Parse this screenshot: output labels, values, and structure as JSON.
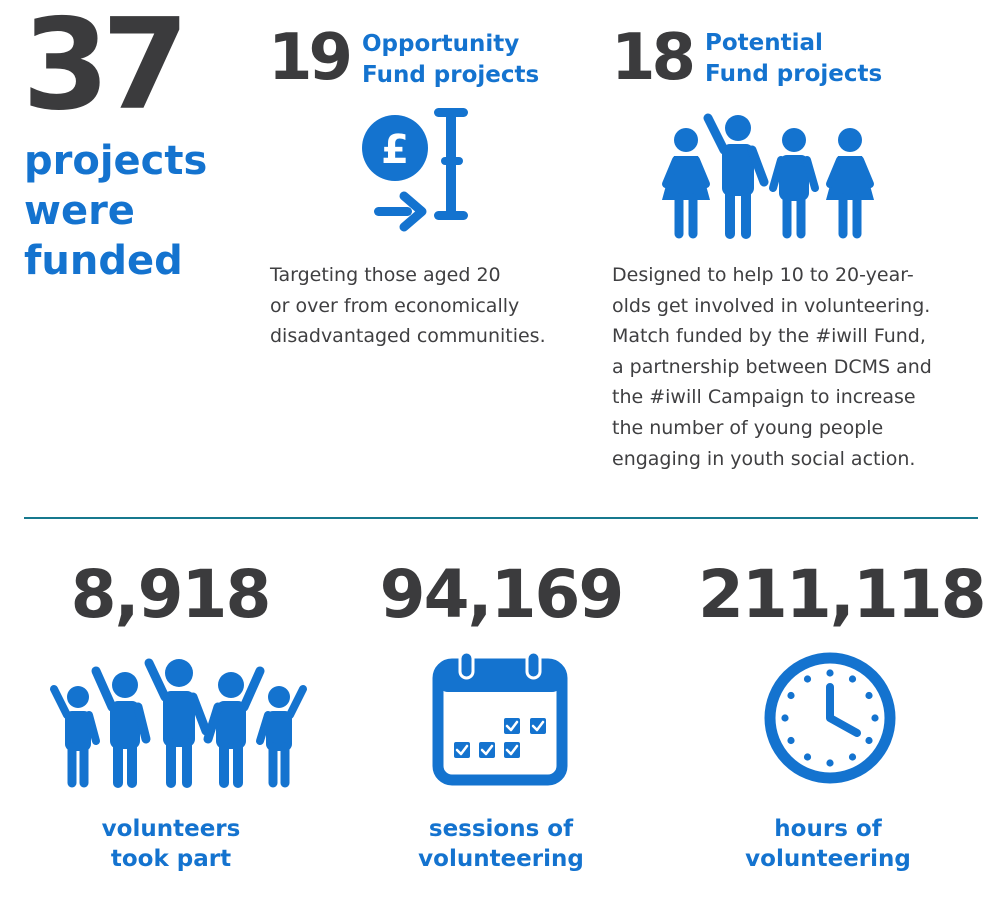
{
  "total": {
    "number": "37",
    "label_lines": [
      "projects",
      "were",
      "funded"
    ]
  },
  "opportunity": {
    "number": "19",
    "title_lines": [
      "Opportunity",
      "Fund projects"
    ],
    "icon": "pound-coin-arrow-icon",
    "description_lines": [
      "Targeting those aged 20",
      "or over from economically",
      "disadvantaged communities."
    ]
  },
  "potential": {
    "number": "18",
    "title_lines": [
      "Potential",
      "Fund projects"
    ],
    "icon": "young-people-group-icon",
    "description_lines": [
      "Designed to help 10 to 20-year-",
      "olds get involved in volunteering.",
      "Match funded by the #iwill Fund,",
      "a partnership between DCMS and",
      "the #iwill Campaign to increase",
      "the number of young people",
      "engaging in youth social action."
    ]
  },
  "stats": [
    {
      "value": "8,918",
      "caption_lines": [
        "volunteers",
        "took part"
      ],
      "icon": "volunteers-group-icon"
    },
    {
      "value": "94,169",
      "caption_lines": [
        "sessions of",
        "volunteering"
      ],
      "icon": "calendar-icon"
    },
    {
      "value": "211,118",
      "caption_lines": [
        "hours of",
        "volunteering"
      ],
      "icon": "clock-icon"
    }
  ],
  "colors": {
    "blue": "#1473cf",
    "dark": "#3b3b3d",
    "divider": "#17798e"
  }
}
